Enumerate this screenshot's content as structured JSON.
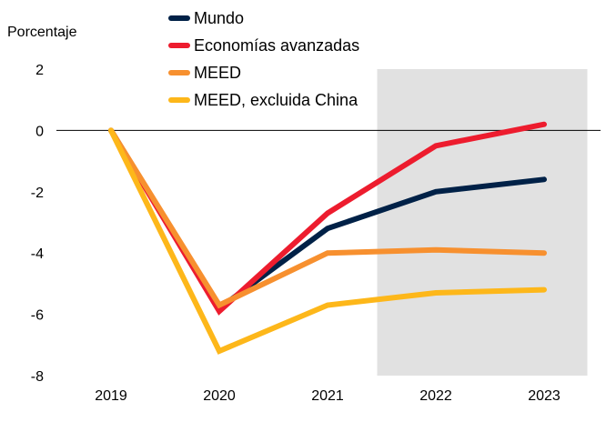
{
  "chart_data": {
    "type": "line",
    "title": "",
    "xlabel": "",
    "ylabel": "Porcentaje",
    "x": [
      "2019",
      "2020",
      "2021",
      "2022",
      "2023"
    ],
    "ylim": [
      -8,
      2
    ],
    "yticks": [
      "2",
      "0",
      "-2",
      "-4",
      "-6",
      "-8"
    ],
    "ytick_values": [
      2,
      0,
      -2,
      -4,
      -6,
      -8
    ],
    "grid": false,
    "zero_line": true,
    "shaded_region": {
      "from": "2022",
      "to": "2023",
      "color": "#e1e1e1",
      "meaning": "projection"
    },
    "legend_position": "top-center",
    "series": [
      {
        "name": "Mundo",
        "color": "#002147",
        "values": [
          0,
          -5.8,
          -3.2,
          -2.0,
          -1.6
        ]
      },
      {
        "name": "Economías avanzadas",
        "color": "#ed1c2e",
        "values": [
          0,
          -5.9,
          -2.7,
          -0.5,
          0.2
        ]
      },
      {
        "name": "MEED",
        "color": "#f7902f",
        "values": [
          0,
          -5.7,
          -4.0,
          -3.9,
          -4.0
        ]
      },
      {
        "name": "MEED, excluida China",
        "color": "#fdb71a",
        "values": [
          0,
          -7.2,
          -5.7,
          -5.3,
          -5.2
        ]
      }
    ]
  }
}
